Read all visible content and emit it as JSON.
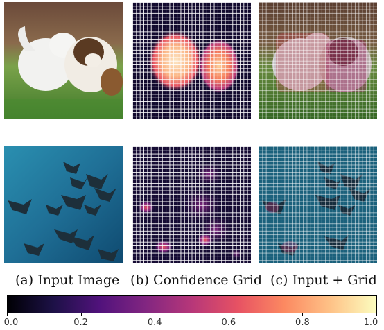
{
  "captions": {
    "a": "(a) Input Image",
    "b": "(b) Confidence Grid",
    "c": "(c) Input + Grid"
  },
  "panels": {
    "row1_image": "cat and puppy photo",
    "row2_image": "underwater manta rays photo"
  },
  "colorbar": {
    "colormap": "magma",
    "ticks": [
      "0.0",
      "0.2",
      "0.4",
      "0.6",
      "0.8",
      "1.0"
    ],
    "range": [
      0.0,
      1.0
    ],
    "colors": [
      "#000004",
      "#1d1147",
      "#51127c",
      "#822681",
      "#b73779",
      "#e75263",
      "#fc8961",
      "#fec287",
      "#fcfdbf"
    ]
  }
}
